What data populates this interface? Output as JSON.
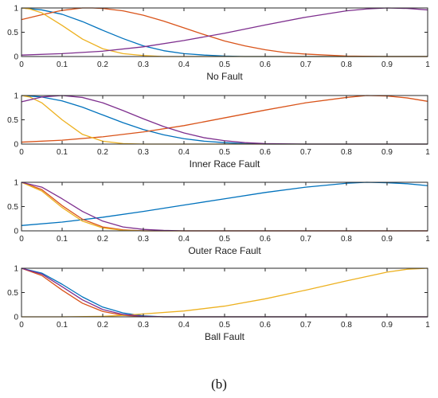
{
  "figure_caption": "(b)",
  "colors": {
    "blue": "#0072BD",
    "orange": "#D95319",
    "yellow": "#EDB120",
    "purple": "#7E2F8E"
  },
  "chart_data": [
    {
      "type": "line",
      "title": "No Fault",
      "xlim": [
        0,
        1
      ],
      "ylim": [
        0,
        1
      ],
      "xticks": [
        "0",
        "0.1",
        "0.2",
        "0.3",
        "0.4",
        "0.5",
        "0.6",
        "0.7",
        "0.8",
        "0.9",
        "1"
      ],
      "yticks": [
        "0",
        "0.5",
        "1"
      ],
      "series": [
        {
          "color": "#0072BD",
          "x": [
            0,
            0.05,
            0.1,
            0.15,
            0.2,
            0.25,
            0.3,
            0.35,
            0.4,
            0.45,
            0.5,
            0.55,
            0.6,
            0.7,
            0.8,
            0.9,
            1.0
          ],
          "y": [
            1.0,
            0.96,
            0.87,
            0.72,
            0.54,
            0.37,
            0.22,
            0.12,
            0.06,
            0.03,
            0.01,
            0.0,
            0.0,
            0.0,
            0.0,
            0.0,
            0.0
          ]
        },
        {
          "color": "#D95319",
          "x": [
            0,
            0.05,
            0.1,
            0.15,
            0.175,
            0.2,
            0.25,
            0.3,
            0.35,
            0.4,
            0.45,
            0.5,
            0.55,
            0.6,
            0.65,
            0.7,
            0.8,
            0.9,
            1.0
          ],
          "y": [
            0.76,
            0.86,
            0.95,
            1.0,
            1.0,
            0.99,
            0.94,
            0.85,
            0.73,
            0.59,
            0.45,
            0.32,
            0.22,
            0.14,
            0.08,
            0.05,
            0.01,
            0.0,
            0.0
          ]
        },
        {
          "color": "#EDB120",
          "x": [
            0,
            0.02,
            0.05,
            0.1,
            0.15,
            0.2,
            0.25,
            0.3,
            0.35,
            0.4,
            0.5,
            0.6,
            0.8,
            1.0
          ],
          "y": [
            1.0,
            0.98,
            0.9,
            0.64,
            0.36,
            0.16,
            0.06,
            0.02,
            0.0,
            0.0,
            0.0,
            0.0,
            0.0,
            0.0
          ]
        },
        {
          "color": "#7E2F8E",
          "x": [
            0,
            0.1,
            0.2,
            0.3,
            0.4,
            0.5,
            0.6,
            0.7,
            0.8,
            0.85,
            0.9,
            0.95,
            1.0
          ],
          "y": [
            0.03,
            0.06,
            0.11,
            0.2,
            0.33,
            0.48,
            0.65,
            0.81,
            0.94,
            0.98,
            1.0,
            0.99,
            0.96
          ]
        }
      ]
    },
    {
      "type": "line",
      "title": "Inner Race Fault",
      "xlim": [
        0,
        1
      ],
      "ylim": [
        0,
        1
      ],
      "xticks": [
        "0",
        "0.1",
        "0.2",
        "0.3",
        "0.4",
        "0.5",
        "0.6",
        "0.7",
        "0.8",
        "0.9",
        "1"
      ],
      "yticks": [
        "0",
        "0.5",
        "1"
      ],
      "series": [
        {
          "color": "#0072BD",
          "x": [
            0,
            0.05,
            0.1,
            0.15,
            0.2,
            0.25,
            0.3,
            0.35,
            0.4,
            0.45,
            0.5,
            0.55,
            0.6,
            0.7,
            0.8,
            1.0
          ],
          "y": [
            1.0,
            0.97,
            0.89,
            0.76,
            0.6,
            0.44,
            0.3,
            0.19,
            0.11,
            0.06,
            0.03,
            0.01,
            0.0,
            0.0,
            0.0,
            0.0
          ]
        },
        {
          "color": "#D95319",
          "x": [
            0,
            0.1,
            0.2,
            0.3,
            0.4,
            0.5,
            0.6,
            0.7,
            0.8,
            0.85,
            0.9,
            0.95,
            1.0
          ],
          "y": [
            0.04,
            0.08,
            0.15,
            0.25,
            0.38,
            0.54,
            0.7,
            0.85,
            0.96,
            1.0,
            0.99,
            0.95,
            0.88
          ]
        },
        {
          "color": "#EDB120",
          "x": [
            0,
            0.02,
            0.05,
            0.1,
            0.15,
            0.2,
            0.25,
            0.3,
            0.35,
            0.4,
            0.5,
            1.0
          ],
          "y": [
            1.0,
            0.97,
            0.85,
            0.5,
            0.2,
            0.06,
            0.01,
            0.0,
            0.0,
            0.0,
            0.0,
            0.0
          ]
        },
        {
          "color": "#7E2F8E",
          "x": [
            0,
            0.05,
            0.1,
            0.15,
            0.2,
            0.25,
            0.3,
            0.35,
            0.4,
            0.45,
            0.5,
            0.55,
            0.6,
            0.7,
            0.8,
            1.0
          ],
          "y": [
            0.87,
            0.97,
            1.0,
            0.96,
            0.85,
            0.69,
            0.52,
            0.36,
            0.23,
            0.13,
            0.07,
            0.03,
            0.01,
            0.0,
            0.0,
            0.0
          ]
        }
      ]
    },
    {
      "type": "line",
      "title": "Outer Race Fault",
      "xlim": [
        0,
        1
      ],
      "ylim": [
        0,
        1
      ],
      "xticks": [
        "0",
        "0.1",
        "0.2",
        "0.3",
        "0.4",
        "0.5",
        "0.6",
        "0.7",
        "0.8",
        "0.9",
        "1"
      ],
      "yticks": [
        "0",
        "0.5",
        "1"
      ],
      "series": [
        {
          "color": "#0072BD",
          "x": [
            0,
            0.1,
            0.2,
            0.3,
            0.4,
            0.5,
            0.6,
            0.7,
            0.8,
            0.85,
            0.9,
            0.95,
            1.0
          ],
          "y": [
            0.11,
            0.18,
            0.28,
            0.4,
            0.53,
            0.66,
            0.79,
            0.9,
            0.98,
            1.0,
            0.99,
            0.97,
            0.93
          ]
        },
        {
          "color": "#D95319",
          "x": [
            0,
            0.05,
            0.1,
            0.15,
            0.2,
            0.25,
            0.3,
            0.4,
            1.0
          ],
          "y": [
            1.0,
            0.85,
            0.52,
            0.24,
            0.08,
            0.02,
            0.0,
            0.0,
            0.0
          ]
        },
        {
          "color": "#EDB120",
          "x": [
            0,
            0.05,
            0.1,
            0.15,
            0.2,
            0.25,
            0.3,
            0.4,
            1.0
          ],
          "y": [
            1.0,
            0.82,
            0.48,
            0.2,
            0.06,
            0.01,
            0.0,
            0.0,
            0.0
          ]
        },
        {
          "color": "#7E2F8E",
          "x": [
            0,
            0.05,
            0.1,
            0.15,
            0.2,
            0.25,
            0.3,
            0.35,
            0.4,
            1.0
          ],
          "y": [
            1.0,
            0.9,
            0.66,
            0.4,
            0.2,
            0.08,
            0.03,
            0.01,
            0.0,
            0.0
          ]
        }
      ]
    },
    {
      "type": "line",
      "title": "Ball Fault",
      "xlim": [
        0,
        1
      ],
      "ylim": [
        0,
        1
      ],
      "xticks": [
        "0",
        "0.1",
        "0.2",
        "0.3",
        "0.4",
        "0.5",
        "0.6",
        "0.7",
        "0.8",
        "0.9",
        "1"
      ],
      "yticks": [
        "0",
        "0.5",
        "1"
      ],
      "series": [
        {
          "color": "#0072BD",
          "x": [
            0,
            0.05,
            0.1,
            0.15,
            0.2,
            0.25,
            0.3,
            0.35,
            0.4,
            1.0
          ],
          "y": [
            1.0,
            0.9,
            0.67,
            0.41,
            0.2,
            0.08,
            0.02,
            0.0,
            0.0,
            0.0
          ]
        },
        {
          "color": "#D95319",
          "x": [
            0,
            0.05,
            0.1,
            0.15,
            0.2,
            0.25,
            0.3,
            0.35,
            0.4,
            1.0
          ],
          "y": [
            1.0,
            0.85,
            0.55,
            0.28,
            0.11,
            0.03,
            0.01,
            0.0,
            0.0,
            0.0
          ]
        },
        {
          "color": "#EDB120",
          "x": [
            0,
            0.1,
            0.2,
            0.25,
            0.3,
            0.4,
            0.5,
            0.6,
            0.7,
            0.8,
            0.9,
            0.95,
            1.0
          ],
          "y": [
            0.0,
            0.0,
            0.01,
            0.03,
            0.06,
            0.12,
            0.22,
            0.37,
            0.55,
            0.74,
            0.92,
            0.98,
            1.0
          ]
        },
        {
          "color": "#7E2F8E",
          "x": [
            0,
            0.05,
            0.1,
            0.15,
            0.2,
            0.25,
            0.3,
            0.35,
            0.4,
            1.0
          ],
          "y": [
            1.0,
            0.88,
            0.62,
            0.35,
            0.15,
            0.05,
            0.01,
            0.0,
            0.0,
            0.0
          ]
        }
      ]
    }
  ]
}
